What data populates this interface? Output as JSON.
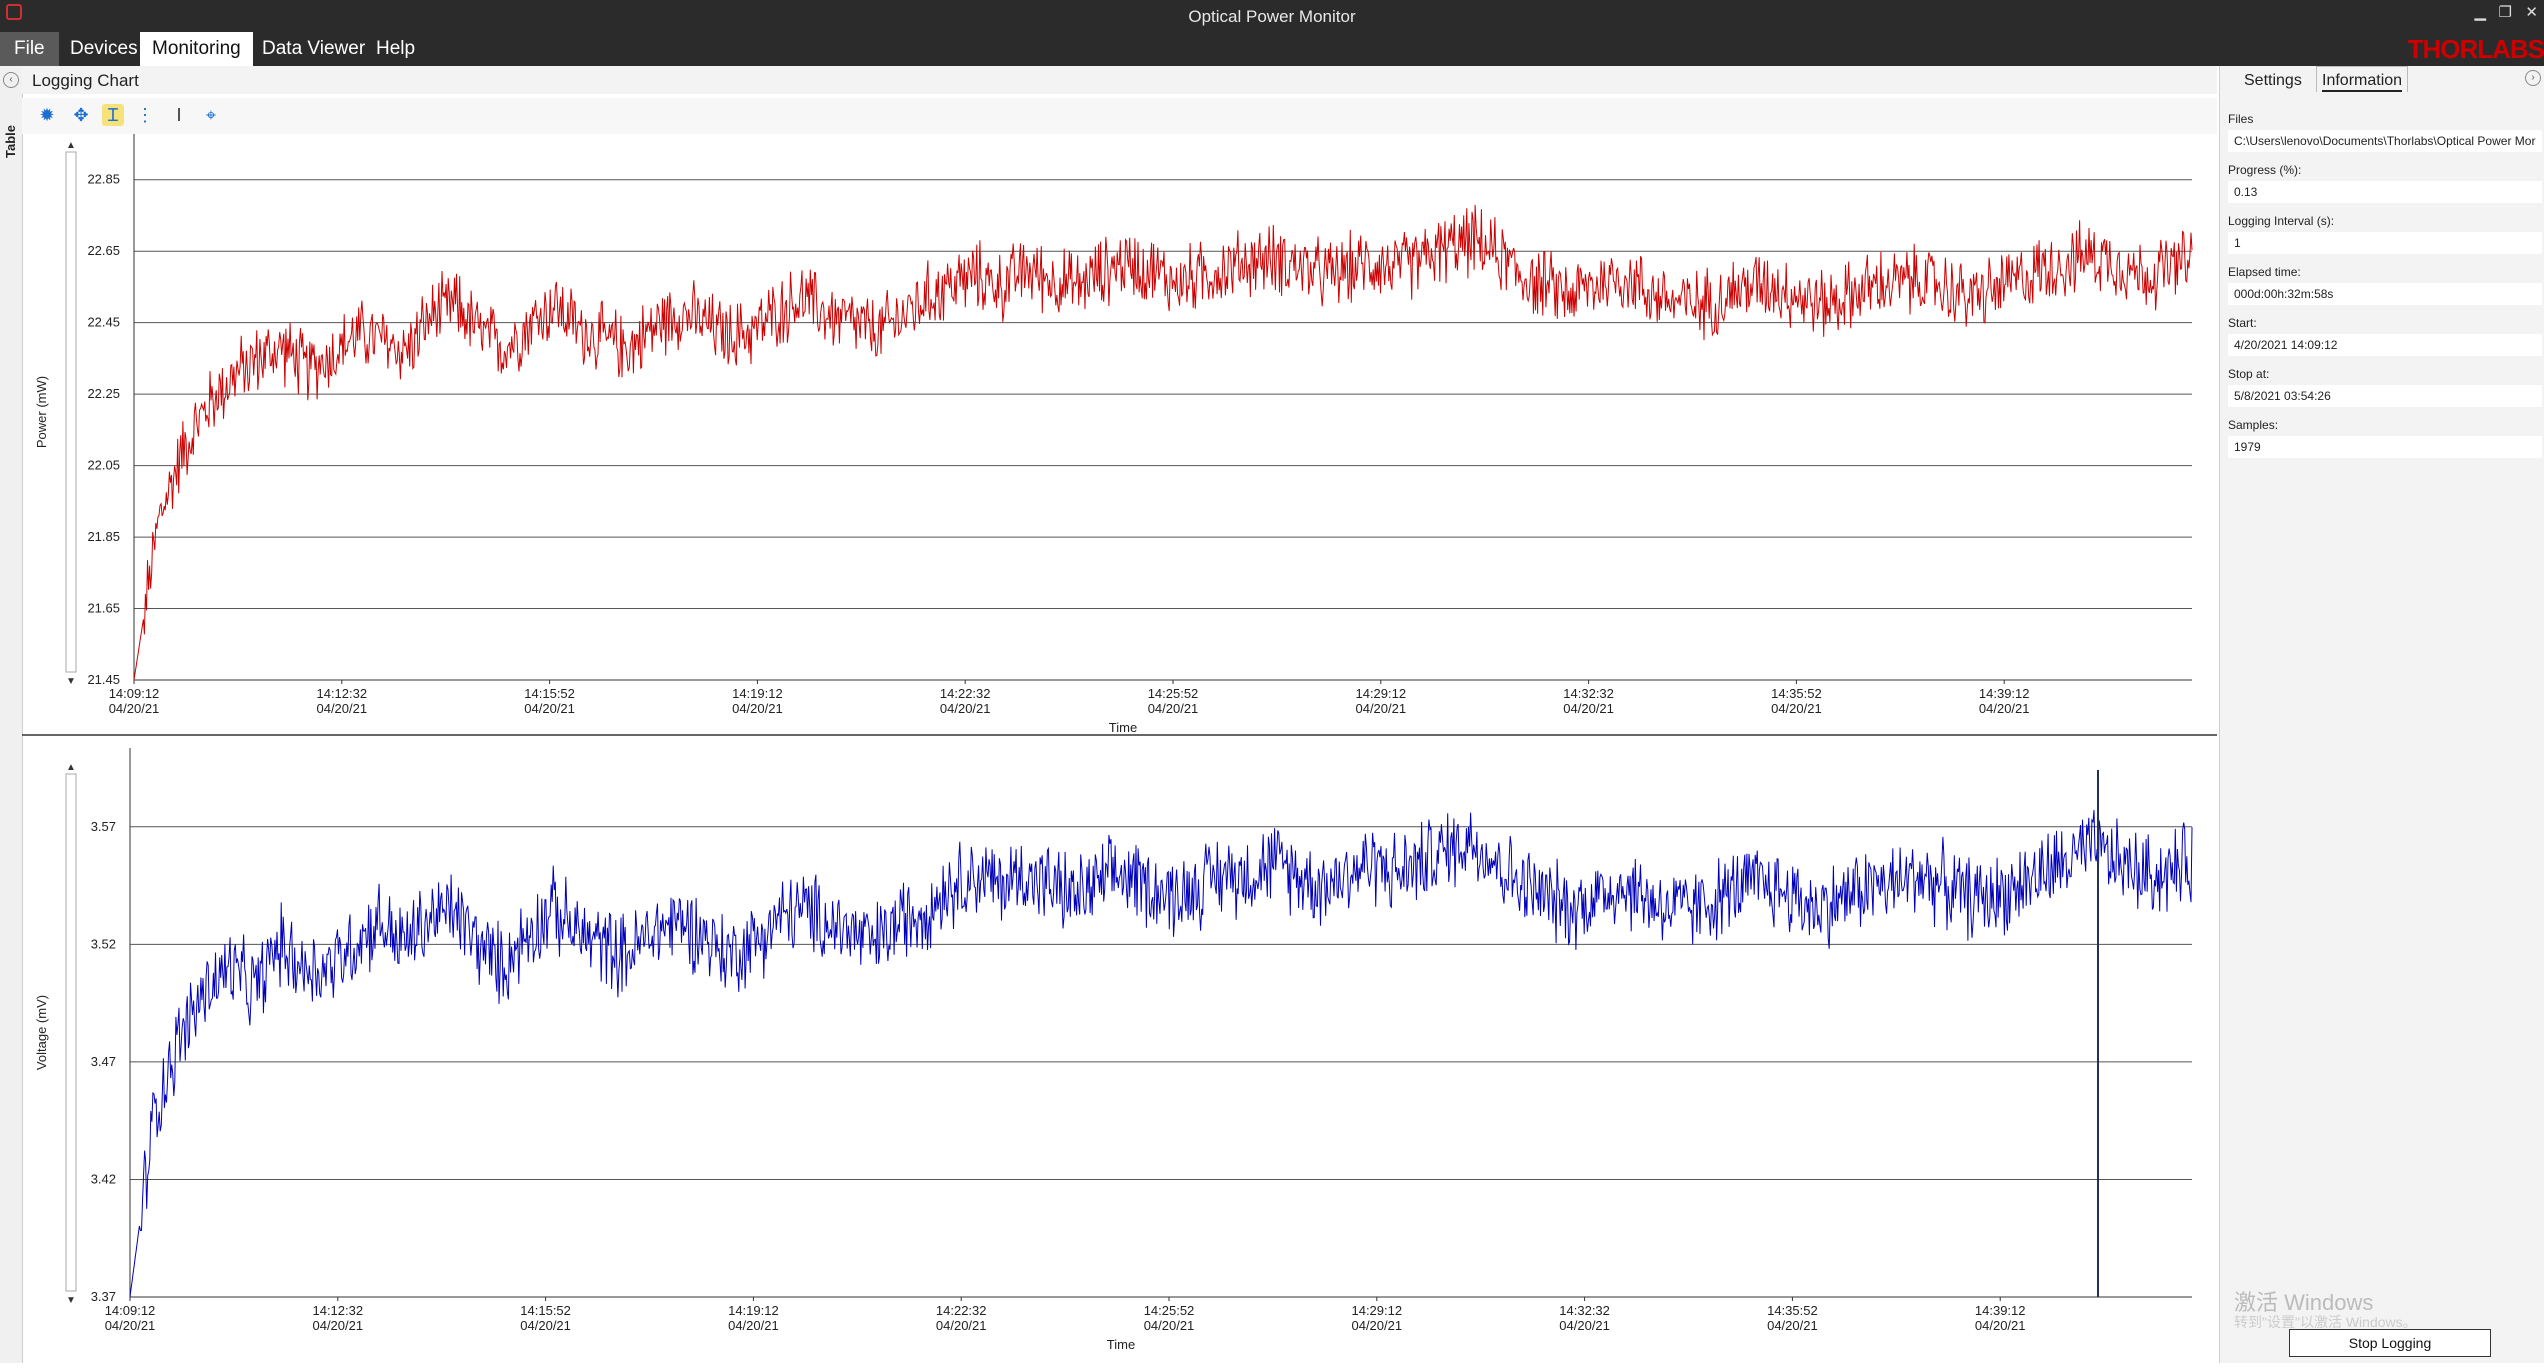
{
  "window": {
    "title": "Optical Power Monitor",
    "min": "▁",
    "restore": "❐",
    "close": "✕"
  },
  "menu": {
    "file": "File",
    "items": [
      "Devices",
      "Monitoring",
      "Data Viewer",
      "Help"
    ]
  },
  "brand": "THORLABS",
  "left_tab": {
    "label": "Table",
    "expander": "‹"
  },
  "panel": {
    "title": "Logging Chart"
  },
  "toolbar": {
    "icons": [
      "gear-icon",
      "move-icon",
      "cursor-y-icon",
      "list-icon",
      "text-cursor-icon",
      "zoom-fit-icon"
    ],
    "glyphs": [
      "✹",
      "✥",
      "Ɪ",
      "⋮",
      "I",
      "⌖"
    ]
  },
  "colors": {
    "power": "#cc0000",
    "voltage": "#0000bb",
    "brand": "#cc0000"
  },
  "chart_data": [
    {
      "type": "line",
      "ylabel": "Power (mW)",
      "xlabel": "Time",
      "ylim": [
        21.45,
        22.95
      ],
      "yticks": [
        "22.85",
        "22.65",
        "22.45",
        "22.25",
        "22.05",
        "21.85",
        "21.65",
        "21.45"
      ],
      "xticks": [
        {
          "time": "14:09:12",
          "date": "04/20/21"
        },
        {
          "time": "14:12:32",
          "date": "04/20/21"
        },
        {
          "time": "14:15:52",
          "date": "04/20/21"
        },
        {
          "time": "14:19:12",
          "date": "04/20/21"
        },
        {
          "time": "14:22:32",
          "date": "04/20/21"
        },
        {
          "time": "14:25:52",
          "date": "04/20/21"
        },
        {
          "time": "14:29:12",
          "date": "04/20/21"
        },
        {
          "time": "14:32:32",
          "date": "04/20/21"
        },
        {
          "time": "14:35:52",
          "date": "04/20/21"
        },
        {
          "time": "14:39:12",
          "date": "04/20/21"
        }
      ],
      "grid": true,
      "series": [
        {
          "x_start": "14:09:12",
          "x_end": "14:42:10",
          "values": [
            21.45,
            21.9,
            22.1,
            22.22,
            22.3,
            22.35,
            22.38,
            22.32,
            22.36,
            22.42,
            22.4,
            22.37,
            22.47,
            22.5,
            22.42,
            22.38,
            22.45,
            22.5,
            22.43,
            22.4,
            22.38,
            22.44,
            22.48,
            22.45,
            22.41,
            22.43,
            22.48,
            22.52,
            22.47,
            22.45,
            22.42,
            22.47,
            22.52,
            22.56,
            22.58,
            22.55,
            22.6,
            22.57,
            22.55,
            22.59,
            22.62,
            22.6,
            22.56,
            22.58,
            22.6,
            22.62,
            22.63,
            22.61,
            22.58,
            22.6,
            22.62,
            22.6,
            22.63,
            22.66,
            22.68,
            22.64,
            22.58,
            22.55,
            22.53,
            22.56,
            22.58,
            22.54,
            22.51,
            22.5,
            22.52,
            22.55,
            22.56,
            22.53,
            22.5,
            22.52,
            22.55,
            22.56,
            22.57,
            22.55,
            22.52,
            22.54,
            22.57,
            22.6,
            22.62,
            22.64,
            22.62,
            22.58,
            22.6,
            22.62
          ]
        }
      ]
    },
    {
      "type": "line",
      "ylabel": "Voltage (mV)",
      "xlabel": "Time",
      "ylim": [
        3.37,
        3.595
      ],
      "yticks": [
        "3.57",
        "3.52",
        "3.47",
        "3.42",
        "3.37"
      ],
      "xticks": [
        {
          "time": "14:09:12",
          "date": "04/20/21"
        },
        {
          "time": "14:12:32",
          "date": "04/20/21"
        },
        {
          "time": "14:15:52",
          "date": "04/20/21"
        },
        {
          "time": "14:19:12",
          "date": "04/20/21"
        },
        {
          "time": "14:22:32",
          "date": "04/20/21"
        },
        {
          "time": "14:25:52",
          "date": "04/20/21"
        },
        {
          "time": "14:29:12",
          "date": "04/20/21"
        },
        {
          "time": "14:32:32",
          "date": "04/20/21"
        },
        {
          "time": "14:35:52",
          "date": "04/20/21"
        },
        {
          "time": "14:39:12",
          "date": "04/20/21"
        }
      ],
      "grid": true,
      "series": [
        {
          "x_start": "14:09:12",
          "x_end": "14:42:10",
          "values": [
            3.37,
            3.45,
            3.48,
            3.5,
            3.51,
            3.5,
            3.52,
            3.51,
            3.51,
            3.52,
            3.53,
            3.52,
            3.53,
            3.535,
            3.52,
            3.51,
            3.525,
            3.535,
            3.525,
            3.52,
            3.515,
            3.525,
            3.53,
            3.525,
            3.515,
            3.52,
            3.53,
            3.535,
            3.53,
            3.525,
            3.52,
            3.53,
            3.535,
            3.545,
            3.55,
            3.545,
            3.55,
            3.545,
            3.54,
            3.545,
            3.55,
            3.545,
            3.54,
            3.545,
            3.55,
            3.55,
            3.555,
            3.55,
            3.545,
            3.55,
            3.555,
            3.55,
            3.555,
            3.56,
            3.565,
            3.555,
            3.545,
            3.54,
            3.535,
            3.54,
            3.545,
            3.54,
            3.535,
            3.535,
            3.54,
            3.545,
            3.545,
            3.54,
            3.535,
            3.54,
            3.545,
            3.545,
            3.55,
            3.545,
            3.54,
            3.54,
            3.545,
            3.55,
            3.555,
            3.56,
            3.555,
            3.55,
            3.55,
            3.555
          ]
        }
      ]
    }
  ],
  "right_panel": {
    "tabs": [
      "Settings",
      "Information"
    ],
    "expander": "›",
    "fields": [
      {
        "label": "Files",
        "value": "C:\\Users\\lenovo\\Documents\\Thorlabs\\Optical Power Mor"
      },
      {
        "label": "Progress (%):",
        "value": "0.13"
      },
      {
        "label": "Logging Interval (s):",
        "value": "1"
      },
      {
        "label": "Elapsed time:",
        "value": "000d:00h:32m:58s"
      },
      {
        "label": "Start:",
        "value": "4/20/2021 14:09:12"
      },
      {
        "label": "Stop at:",
        "value": "5/8/2021 03:54:26"
      },
      {
        "label": "Samples:",
        "value": "1979"
      }
    ],
    "watermark": "激活 Windows",
    "watermark_sub": "转到\"设置\"以激活 Windows。",
    "stop_button": "Stop Logging"
  }
}
